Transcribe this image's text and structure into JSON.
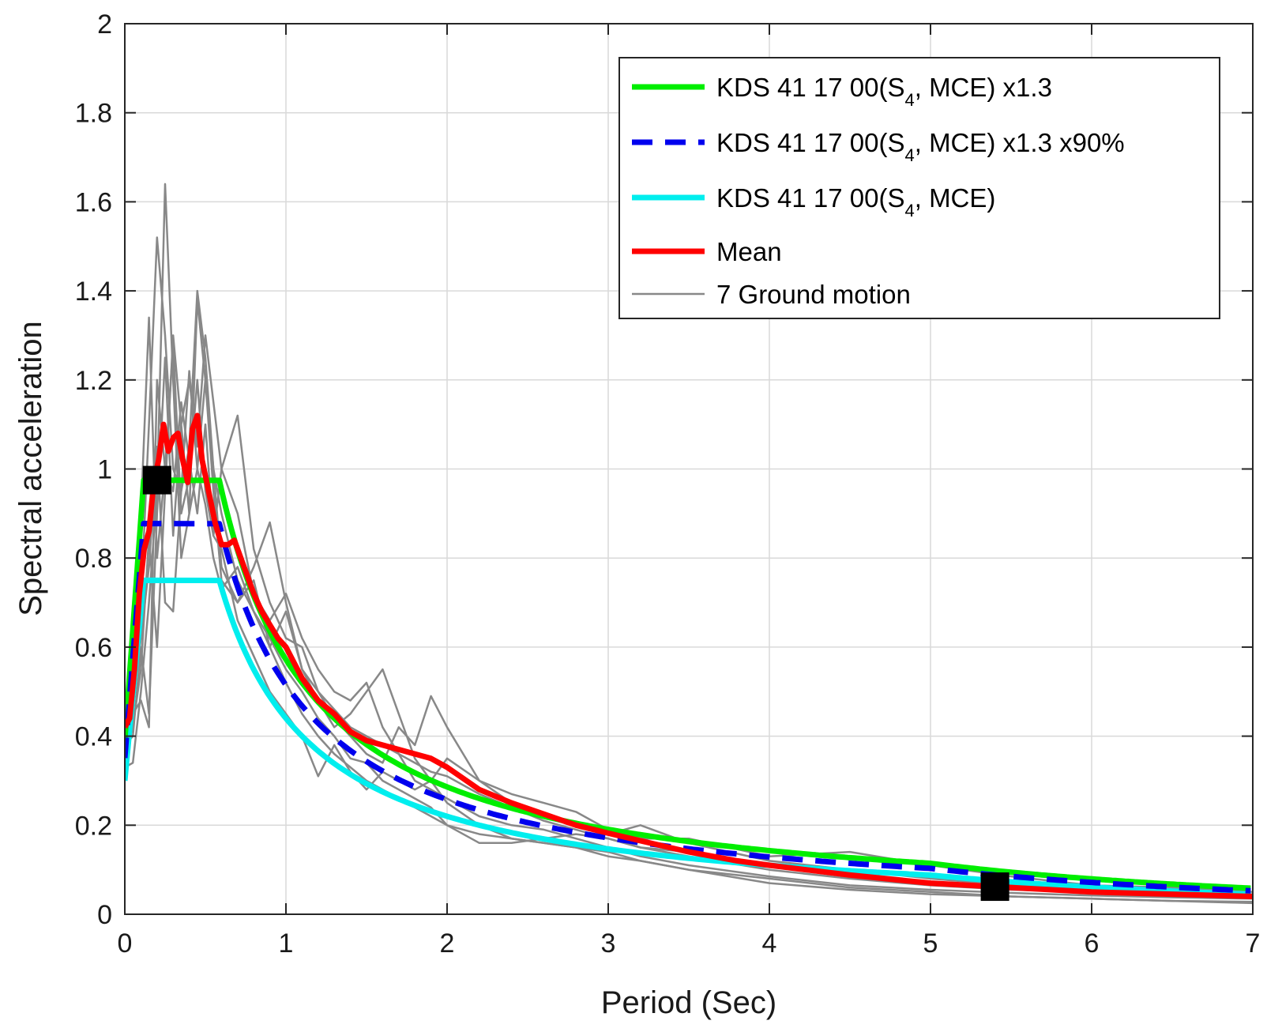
{
  "chart_data": {
    "type": "line",
    "title": "",
    "xlabel": "Period (Sec)",
    "ylabel": "Spectral acceleration",
    "xlim": [
      0,
      7
    ],
    "ylim": [
      0,
      2
    ],
    "xticks": [
      0,
      1,
      2,
      3,
      4,
      5,
      6,
      7
    ],
    "xtick_labels": [
      "0",
      "1",
      "2",
      "3",
      "4",
      "5",
      "6",
      "7"
    ],
    "yticks": [
      0,
      0.2,
      0.4,
      0.6,
      0.8,
      1.0,
      1.2,
      1.4,
      1.6,
      1.8,
      2.0
    ],
    "ytick_labels": [
      "0",
      "0.2",
      "0.4",
      "0.6",
      "0.8",
      "1",
      "1.2",
      "1.4",
      "1.6",
      "1.8",
      "2"
    ],
    "grid": true,
    "legend_position": "top-right",
    "legend": [
      {
        "key": "design13",
        "pre": "KDS 41 17 00(S",
        "sub": "4",
        "post": ", MCE) x1.3"
      },
      {
        "key": "design1390",
        "pre": "KDS 41 17 00(S",
        "sub": "4",
        "post": ", MCE) x1.3 x90%"
      },
      {
        "key": "design",
        "pre": "KDS 41 17 00(S",
        "sub": "4",
        "post": ", MCE)"
      },
      {
        "key": "mean",
        "pre": "Mean",
        "sub": "",
        "post": ""
      },
      {
        "key": "gm",
        "pre": "7 Ground motion",
        "sub": "",
        "post": ""
      }
    ],
    "design_spectrum": {
      "SDS": 0.75,
      "SD1": 0.44,
      "T0": 0.117,
      "TS": 0.587,
      "TL": 5.0
    },
    "colors": {
      "design13": "#00ee00",
      "design1390": "#0000ee",
      "design": "#00eeee",
      "mean": "#ff0000",
      "gm": "#888888",
      "grid": "#d9d9d9",
      "axis": "#262626"
    },
    "markers": [
      {
        "name": "marker-short-period",
        "x": 0.2,
        "y": 0.975
      },
      {
        "name": "marker-long-period",
        "x": 5.4,
        "y": 0.062
      }
    ],
    "mean_series": {
      "x": [
        0,
        0.03,
        0.06,
        0.09,
        0.12,
        0.15,
        0.18,
        0.21,
        0.24,
        0.27,
        0.3,
        0.33,
        0.36,
        0.39,
        0.42,
        0.45,
        0.48,
        0.52,
        0.56,
        0.6,
        0.64,
        0.68,
        0.72,
        0.76,
        0.8,
        0.85,
        0.9,
        0.95,
        1.0,
        1.1,
        1.2,
        1.3,
        1.4,
        1.5,
        1.6,
        1.7,
        1.8,
        1.9,
        2.0,
        2.2,
        2.4,
        2.6,
        2.8,
        3.0,
        3.2,
        3.5,
        3.8,
        4.0,
        4.5,
        5.0,
        5.4,
        6.0,
        6.5,
        7.0
      ],
      "y": [
        0.42,
        0.44,
        0.55,
        0.72,
        0.82,
        0.86,
        0.97,
        1.02,
        1.1,
        1.04,
        1.07,
        1.08,
        1.02,
        0.97,
        1.09,
        1.12,
        1.02,
        0.95,
        0.88,
        0.83,
        0.83,
        0.84,
        0.8,
        0.76,
        0.72,
        0.68,
        0.65,
        0.62,
        0.6,
        0.53,
        0.48,
        0.45,
        0.41,
        0.39,
        0.38,
        0.37,
        0.36,
        0.35,
        0.33,
        0.28,
        0.25,
        0.225,
        0.2,
        0.182,
        0.165,
        0.14,
        0.12,
        0.11,
        0.088,
        0.07,
        0.062,
        0.05,
        0.045,
        0.04
      ]
    },
    "ground_motions": [
      {
        "name": "GM1",
        "x": [
          0,
          0.05,
          0.1,
          0.15,
          0.2,
          0.25,
          0.3,
          0.35,
          0.4,
          0.45,
          0.5,
          0.55,
          0.6,
          0.7,
          0.8,
          0.9,
          1.0,
          1.1,
          1.2,
          1.3,
          1.4,
          1.5,
          1.6,
          1.7,
          1.8,
          1.9,
          2.0,
          2.2,
          2.4,
          2.6,
          2.8,
          3.0,
          3.2,
          3.5,
          4.0,
          4.5,
          5.0,
          5.5,
          6.0,
          6.5,
          7.0
        ],
        "y": [
          0.4,
          0.45,
          0.7,
          1.1,
          1.52,
          1.3,
          1.0,
          0.95,
          1.05,
          1.4,
          1.25,
          1.0,
          0.78,
          0.7,
          0.75,
          0.6,
          0.68,
          0.55,
          0.5,
          0.46,
          0.42,
          0.4,
          0.38,
          0.36,
          0.34,
          0.32,
          0.31,
          0.27,
          0.24,
          0.21,
          0.19,
          0.17,
          0.15,
          0.13,
          0.1,
          0.08,
          0.065,
          0.055,
          0.05,
          0.045,
          0.04
        ]
      },
      {
        "name": "GM2",
        "x": [
          0,
          0.05,
          0.1,
          0.15,
          0.2,
          0.25,
          0.3,
          0.35,
          0.4,
          0.45,
          0.5,
          0.55,
          0.6,
          0.7,
          0.8,
          0.9,
          1.0,
          1.1,
          1.2,
          1.3,
          1.4,
          1.5,
          1.6,
          1.7,
          1.8,
          1.9,
          2.0,
          2.2,
          2.4,
          2.6,
          2.8,
          3.0,
          3.2,
          3.5,
          4.0,
          4.5,
          5.0,
          5.5,
          6.0,
          6.5,
          7.0
        ],
        "y": [
          0.35,
          0.5,
          0.9,
          1.34,
          0.8,
          1.0,
          1.28,
          0.9,
          0.98,
          1.2,
          0.95,
          0.85,
          1.0,
          0.9,
          0.72,
          0.66,
          0.72,
          0.62,
          0.55,
          0.5,
          0.48,
          0.52,
          0.42,
          0.36,
          0.3,
          0.28,
          0.26,
          0.22,
          0.2,
          0.19,
          0.17,
          0.15,
          0.13,
          0.11,
          0.085,
          0.065,
          0.055,
          0.048,
          0.042,
          0.038,
          0.035
        ]
      },
      {
        "name": "GM3",
        "x": [
          0,
          0.05,
          0.1,
          0.15,
          0.2,
          0.25,
          0.3,
          0.35,
          0.4,
          0.45,
          0.5,
          0.55,
          0.6,
          0.7,
          0.8,
          0.9,
          1.0,
          1.1,
          1.2,
          1.3,
          1.4,
          1.5,
          1.6,
          1.7,
          1.8,
          1.9,
          2.0,
          2.2,
          2.4,
          2.6,
          2.8,
          3.0,
          3.2,
          3.5,
          4.0,
          4.5,
          5.0,
          5.5,
          6.0,
          6.5,
          7.0
        ],
        "y": [
          0.33,
          0.34,
          0.5,
          0.7,
          0.95,
          1.64,
          1.2,
          0.8,
          0.9,
          1.38,
          1.2,
          1.0,
          0.9,
          0.75,
          0.68,
          0.6,
          0.52,
          0.45,
          0.4,
          0.36,
          0.33,
          0.3,
          0.28,
          0.26,
          0.24,
          0.22,
          0.2,
          0.18,
          0.17,
          0.16,
          0.15,
          0.13,
          0.12,
          0.1,
          0.08,
          0.06,
          0.05,
          0.04,
          0.035,
          0.03,
          0.025
        ]
      },
      {
        "name": "GM4",
        "x": [
          0,
          0.05,
          0.1,
          0.15,
          0.2,
          0.25,
          0.3,
          0.35,
          0.4,
          0.45,
          0.5,
          0.55,
          0.6,
          0.7,
          0.8,
          0.9,
          1.0,
          1.1,
          1.2,
          1.3,
          1.4,
          1.5,
          1.6,
          1.7,
          1.8,
          1.9,
          2.0,
          2.2,
          2.4,
          2.6,
          2.8,
          3.0,
          3.2,
          3.5,
          4.0,
          4.5,
          5.0,
          5.5,
          6.0,
          6.5,
          7.0
        ],
        "y": [
          0.38,
          0.4,
          0.6,
          0.45,
          0.9,
          1.25,
          0.85,
          1.1,
          1.2,
          1.05,
          1.3,
          1.15,
          1.0,
          1.12,
          0.82,
          0.7,
          0.62,
          0.6,
          0.5,
          0.44,
          0.4,
          0.36,
          0.34,
          0.42,
          0.38,
          0.49,
          0.42,
          0.3,
          0.27,
          0.25,
          0.23,
          0.19,
          0.17,
          0.17,
          0.13,
          0.14,
          0.11,
          0.085,
          0.065,
          0.06,
          0.05
        ]
      },
      {
        "name": "GM5",
        "x": [
          0,
          0.05,
          0.1,
          0.15,
          0.2,
          0.25,
          0.3,
          0.35,
          0.4,
          0.45,
          0.5,
          0.55,
          0.6,
          0.7,
          0.8,
          0.9,
          1.0,
          1.1,
          1.2,
          1.3,
          1.4,
          1.5,
          1.6,
          1.7,
          1.8,
          1.9,
          2.0,
          2.2,
          2.4,
          2.6,
          2.8,
          3.0,
          3.2,
          3.5,
          4.0,
          4.5,
          5.0,
          5.5,
          6.0,
          6.5,
          7.0
        ],
        "y": [
          0.36,
          0.42,
          0.55,
          0.85,
          0.6,
          0.95,
          1.3,
          1.1,
          0.9,
          1.0,
          1.2,
          0.95,
          0.75,
          0.7,
          0.78,
          0.88,
          0.7,
          0.55,
          0.48,
          0.42,
          0.45,
          0.5,
          0.55,
          0.45,
          0.35,
          0.3,
          0.25,
          0.2,
          0.17,
          0.16,
          0.15,
          0.14,
          0.12,
          0.1,
          0.07,
          0.055,
          0.045,
          0.04,
          0.035,
          0.03,
          0.028
        ]
      },
      {
        "name": "GM6",
        "x": [
          0,
          0.05,
          0.1,
          0.15,
          0.2,
          0.25,
          0.3,
          0.35,
          0.4,
          0.45,
          0.5,
          0.55,
          0.6,
          0.7,
          0.8,
          0.9,
          1.0,
          1.1,
          1.2,
          1.3,
          1.4,
          1.5,
          1.6,
          1.7,
          1.8,
          1.9,
          2.0,
          2.2,
          2.4,
          2.6,
          2.8,
          3.0,
          3.2,
          3.5,
          4.0,
          4.5,
          5.0,
          5.5,
          6.0,
          6.5,
          7.0
        ],
        "y": [
          0.42,
          0.45,
          0.48,
          0.42,
          1.2,
          1.0,
          0.95,
          1.15,
          1.02,
          0.9,
          1.1,
          0.85,
          0.82,
          0.66,
          0.58,
          0.5,
          0.45,
          0.4,
          0.31,
          0.38,
          0.32,
          0.28,
          0.32,
          0.3,
          0.28,
          0.3,
          0.35,
          0.3,
          0.25,
          0.22,
          0.2,
          0.18,
          0.2,
          0.16,
          0.12,
          0.1,
          0.08,
          0.065,
          0.055,
          0.05,
          0.045
        ]
      },
      {
        "name": "GM7",
        "x": [
          0,
          0.05,
          0.1,
          0.15,
          0.2,
          0.25,
          0.3,
          0.35,
          0.4,
          0.45,
          0.5,
          0.55,
          0.6,
          0.7,
          0.8,
          0.9,
          1.0,
          1.1,
          1.2,
          1.3,
          1.4,
          1.5,
          1.6,
          1.7,
          1.8,
          1.9,
          2.0,
          2.2,
          2.4,
          2.6,
          2.8,
          3.0,
          3.2,
          3.5,
          4.0,
          4.5,
          5.0,
          5.5,
          6.0,
          6.5,
          7.0
        ],
        "y": [
          0.4,
          0.48,
          0.62,
          0.78,
          1.05,
          0.7,
          0.68,
          0.95,
          1.22,
          1.0,
          0.92,
          0.8,
          0.73,
          0.78,
          0.68,
          0.62,
          0.55,
          0.5,
          0.44,
          0.4,
          0.35,
          0.34,
          0.3,
          0.28,
          0.26,
          0.24,
          0.2,
          0.16,
          0.16,
          0.17,
          0.18,
          0.17,
          0.15,
          0.14,
          0.11,
          0.09,
          0.07,
          0.06,
          0.05,
          0.045,
          0.04
        ]
      }
    ]
  }
}
